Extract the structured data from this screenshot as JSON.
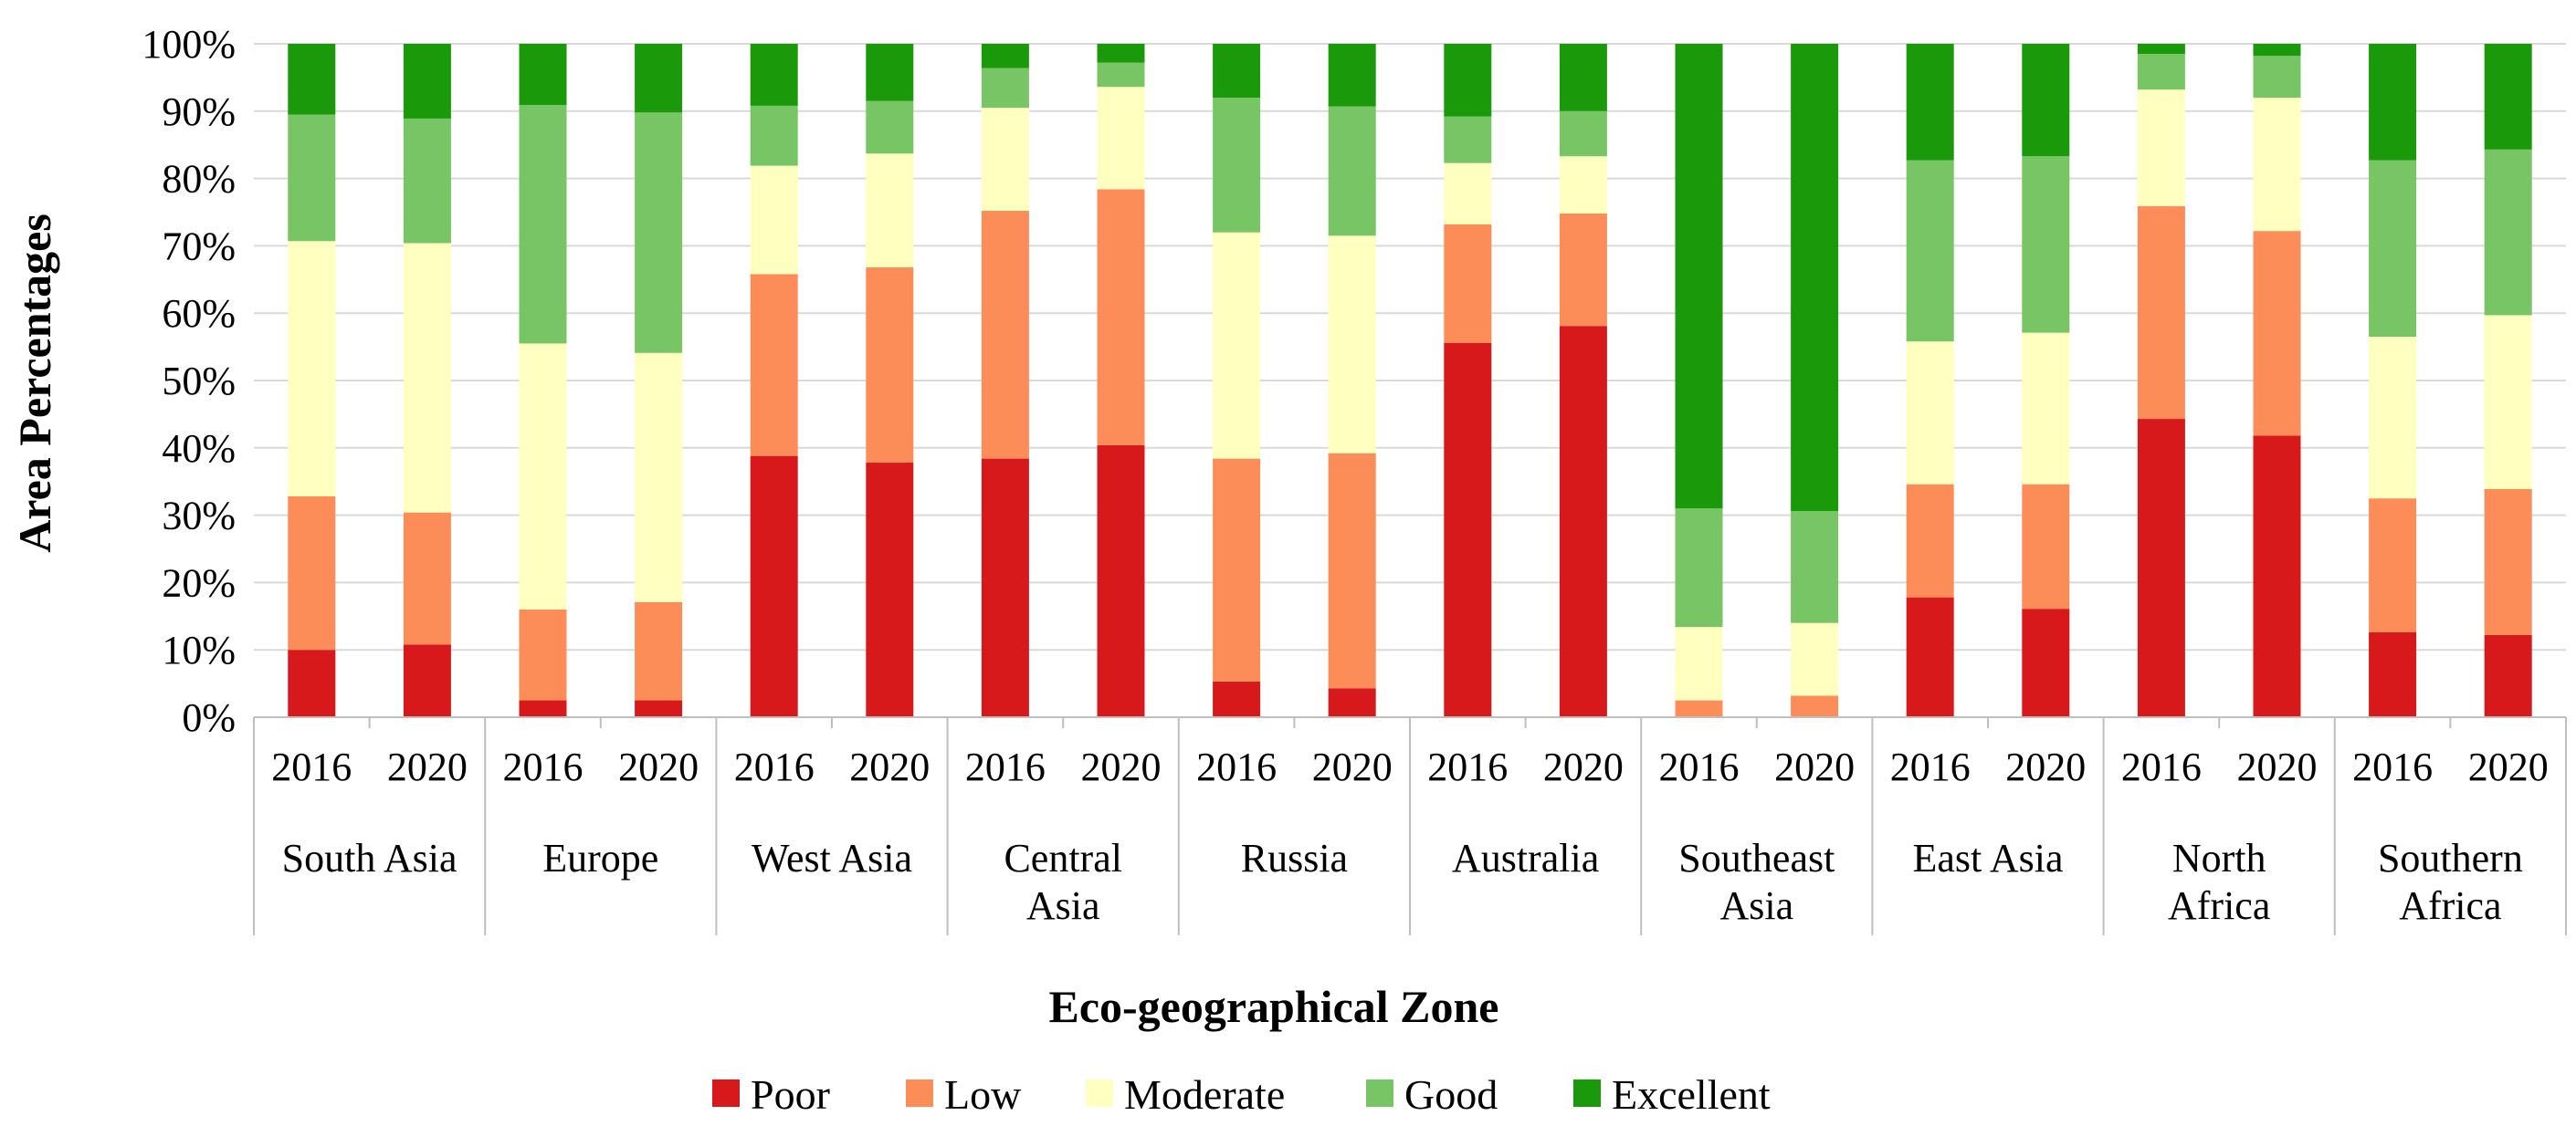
{
  "chart_data": {
    "type": "bar",
    "stacked": true,
    "percent": true,
    "title": "",
    "xlabel": "Eco-geographical Zone",
    "ylabel": "Area Percentages",
    "ylim": [
      0,
      100
    ],
    "yticks": [
      "0%",
      "10%",
      "20%",
      "30%",
      "40%",
      "50%",
      "60%",
      "70%",
      "80%",
      "90%",
      "100%"
    ],
    "legend_position": "bottom",
    "series_colors": {
      "Poor": "#d7191c",
      "Low": "#fc8d59",
      "Moderate": "#ffffbf",
      "Good": "#78c566",
      "Excellent": "#1a9a0a"
    },
    "zones": [
      {
        "name": [
          "South Asia"
        ],
        "years": [
          "2016",
          "2020"
        ]
      },
      {
        "name": [
          "Europe"
        ],
        "years": [
          "2016",
          "2020"
        ]
      },
      {
        "name": [
          "West Asia"
        ],
        "years": [
          "2016",
          "2020"
        ]
      },
      {
        "name": [
          "Central",
          "Asia"
        ],
        "years": [
          "2016",
          "2020"
        ]
      },
      {
        "name": [
          "Russia"
        ],
        "years": [
          "2016",
          "2020"
        ]
      },
      {
        "name": [
          "Australia"
        ],
        "years": [
          "2016",
          "2020"
        ]
      },
      {
        "name": [
          "Southeast",
          "Asia"
        ],
        "years": [
          "2016",
          "2020"
        ]
      },
      {
        "name": [
          "East Asia"
        ],
        "years": [
          "2016",
          "2020"
        ]
      },
      {
        "name": [
          "North",
          "Africa"
        ],
        "years": [
          "2016",
          "2020"
        ]
      },
      {
        "name": [
          "Southern",
          "Africa"
        ],
        "years": [
          "2016",
          "2020"
        ]
      }
    ],
    "series": [
      {
        "name": "Poor",
        "values": [
          10.0,
          10.8,
          2.5,
          2.5,
          38.8,
          37.8,
          38.4,
          40.4,
          5.3,
          4.3,
          55.6,
          58.1,
          0.0,
          0.0,
          17.8,
          16.1,
          44.3,
          41.8,
          12.6,
          12.2
        ]
      },
      {
        "name": "Low",
        "values": [
          22.8,
          19.6,
          13.5,
          14.6,
          27.0,
          29.0,
          36.8,
          38.0,
          33.1,
          34.9,
          17.6,
          16.7,
          2.5,
          3.2,
          16.8,
          18.5,
          31.6,
          30.4,
          19.9,
          21.7
        ]
      },
      {
        "name": "Moderate",
        "values": [
          37.9,
          40.0,
          39.5,
          37.0,
          16.1,
          16.9,
          15.3,
          15.2,
          33.6,
          32.3,
          9.1,
          8.5,
          10.9,
          10.8,
          21.2,
          22.5,
          17.3,
          19.8,
          24.0,
          25.8
        ]
      },
      {
        "name": "Good",
        "values": [
          18.8,
          18.5,
          35.4,
          35.7,
          8.9,
          7.8,
          5.9,
          3.6,
          20.0,
          19.2,
          6.9,
          6.7,
          17.6,
          16.6,
          26.9,
          26.2,
          5.3,
          6.2,
          26.2,
          24.6
        ]
      },
      {
        "name": "Excellent",
        "values": [
          10.5,
          11.1,
          9.1,
          10.2,
          9.2,
          8.5,
          3.6,
          2.8,
          8.0,
          9.3,
          10.8,
          10.0,
          69.0,
          69.4,
          17.3,
          16.7,
          1.5,
          1.8,
          17.3,
          15.7
        ]
      }
    ]
  }
}
